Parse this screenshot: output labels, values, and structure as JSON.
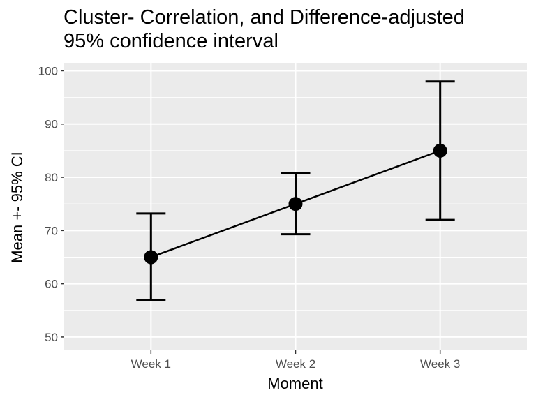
{
  "chart_data": {
    "type": "line",
    "title_lines": [
      "Cluster- Correlation, and Difference-adjusted",
      "95% confidence interval"
    ],
    "xlabel": "Moment",
    "ylabel": "Mean +- 95% CI",
    "categories": [
      "Week 1",
      "Week 2",
      "Week 3"
    ],
    "series": [
      {
        "values": [
          65,
          75,
          85
        ],
        "ci_low": [
          57,
          69.3,
          72
        ],
        "ci_high": [
          73.2,
          80.8,
          98
        ]
      }
    ],
    "ylim": [
      47.5,
      101.5
    ],
    "yticks": [
      50,
      60,
      70,
      80,
      90,
      100
    ],
    "grid": true,
    "colors": {
      "panel": "#ebebeb",
      "grid": "#ffffff",
      "mark": "#000000"
    }
  }
}
